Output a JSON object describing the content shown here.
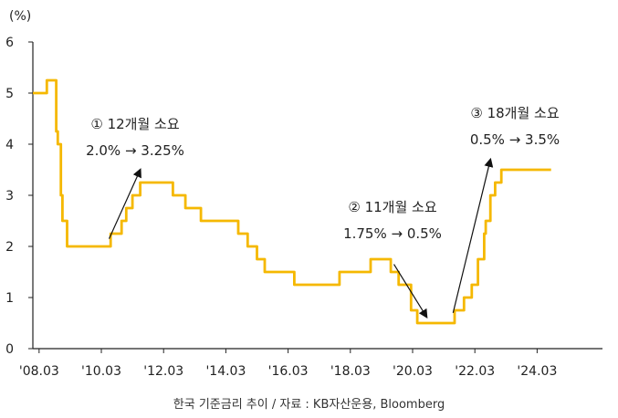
{
  "source_note": "한국 기준금리 추이 / 자료 : KB자산운용, Bloomberg",
  "colors": {
    "line": "#F5B800",
    "axis": "#222222",
    "arrow": "#111111"
  },
  "chart_data": {
    "type": "line",
    "title": "",
    "ylabel": "(%)",
    "xlabel": "",
    "ylim": [
      0,
      6
    ],
    "xlim": [
      2008.0,
      2026.3
    ],
    "grid": false,
    "yticks": [
      0,
      1,
      2,
      3,
      4,
      5,
      6
    ],
    "yticklabels": [
      "0",
      "1",
      "2",
      "3",
      "4",
      "5",
      "6"
    ],
    "xticks": [
      2008.2,
      2010.2,
      2012.2,
      2014.2,
      2016.2,
      2018.2,
      2020.2,
      2022.2,
      2024.2
    ],
    "xticklabels": [
      "'08.03",
      "'10.03",
      "'12.03",
      "'14.03",
      "'16.03",
      "'18.03",
      "'20.03",
      "'22.03",
      "'24.03"
    ],
    "series": [
      {
        "step": true,
        "x": [
          2008.0,
          2008.45,
          2008.6,
          2008.75,
          2008.8,
          2008.9,
          2008.95,
          2009.1,
          2010.5,
          2010.6,
          2010.85,
          2010.95,
          2011.0,
          2011.1,
          2011.2,
          2011.3,
          2011.45,
          2012.5,
          2012.75,
          2012.9,
          2013.4,
          2014.6,
          2014.75,
          2014.9,
          2015.2,
          2015.45,
          2016.4,
          2017.85,
          2018.85,
          2019.5,
          2019.6,
          2019.75,
          2020.15,
          2020.35,
          2021.55,
          2021.85,
          2021.95,
          2022.1,
          2022.3,
          2022.5,
          2022.55,
          2022.7,
          2022.85,
          2022.95,
          2023.05,
          2024.65
        ],
        "values": [
          5.0,
          5.25,
          5.25,
          4.25,
          4.0,
          3.0,
          2.5,
          2.0,
          2.25,
          2.25,
          2.5,
          2.5,
          2.75,
          2.75,
          3.0,
          3.0,
          3.25,
          3.0,
          3.0,
          2.75,
          2.5,
          2.25,
          2.25,
          2.0,
          1.75,
          1.5,
          1.25,
          1.5,
          1.75,
          1.5,
          1.5,
          1.25,
          0.75,
          0.5,
          0.75,
          1.0,
          1.0,
          1.25,
          1.75,
          2.25,
          2.5,
          3.0,
          3.25,
          3.25,
          3.5,
          3.5
        ]
      }
    ],
    "annotations": [
      {
        "lines": [
          "① 12개월 소요",
          "2.0% → 3.25%"
        ],
        "arrow_from": [
          2010.45,
          2.15
        ],
        "arrow_to": [
          2011.45,
          3.5
        ]
      },
      {
        "lines": [
          "② 11개월 소요",
          "1.75% → 0.5%"
        ],
        "arrow_from": [
          2019.6,
          1.65
        ],
        "arrow_to": [
          2020.65,
          0.62
        ]
      },
      {
        "lines": [
          "③ 18개월 소요",
          "0.5% → 3.5%"
        ],
        "arrow_from": [
          2021.5,
          0.7
        ],
        "arrow_to": [
          2022.7,
          3.7
        ]
      }
    ]
  }
}
